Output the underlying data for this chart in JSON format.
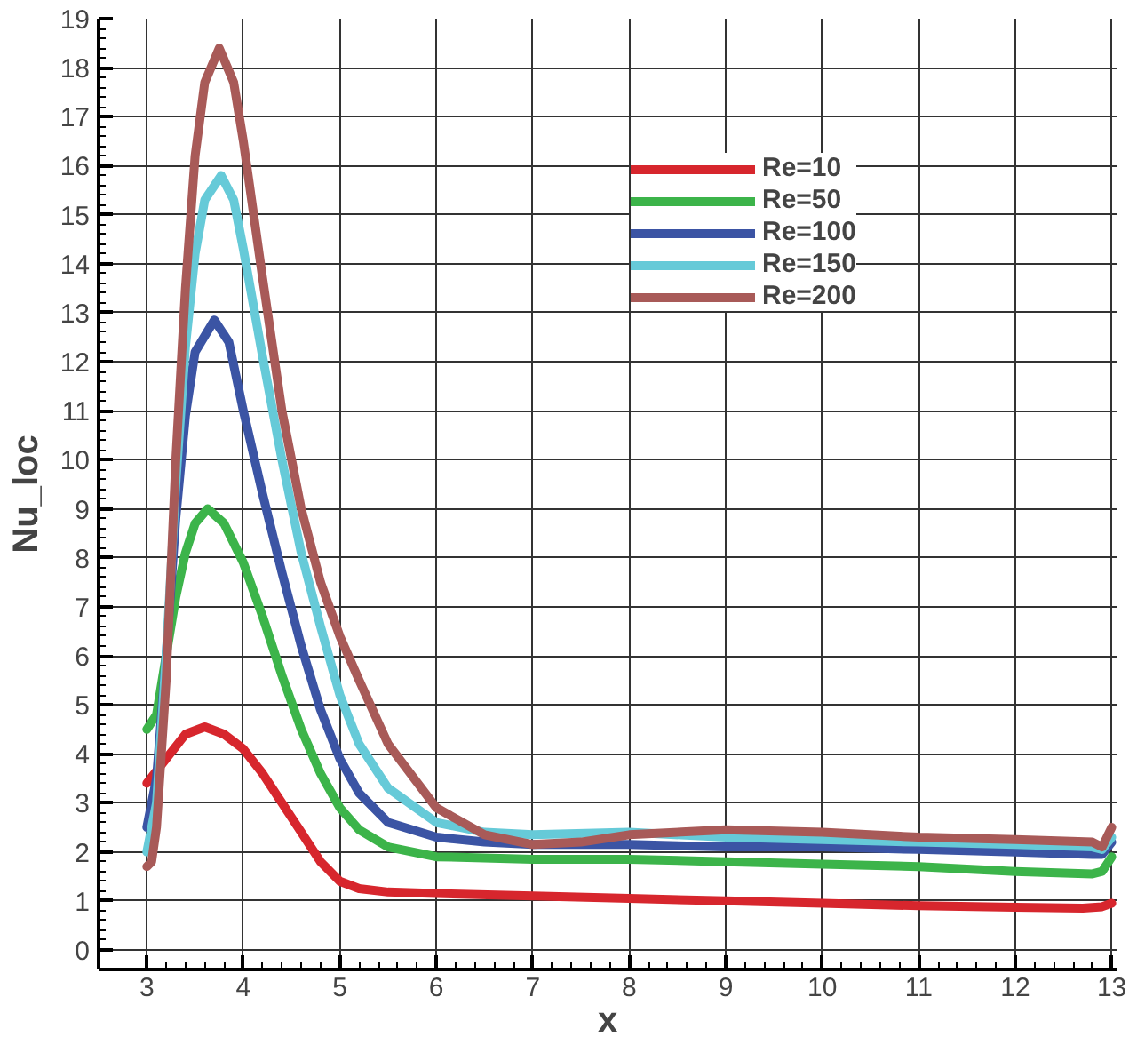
{
  "chart_data": {
    "type": "line",
    "xlabel": "x",
    "ylabel": "Nu_loc",
    "xlim": [
      2.5,
      13.05
    ],
    "ylim": [
      -0.4,
      19
    ],
    "xticks": [
      3,
      4,
      5,
      6,
      7,
      8,
      9,
      10,
      11,
      12,
      13
    ],
    "yticks": [
      0,
      1,
      2,
      3,
      4,
      5,
      6,
      7,
      8,
      9,
      10,
      11,
      12,
      13,
      14,
      15,
      16,
      17,
      18,
      19
    ],
    "grid": true,
    "legend": "top right",
    "line_style": "solid",
    "marker": "none",
    "series": [
      {
        "name": "Re=10",
        "color": "#d7262d",
        "x": [
          3,
          3.2,
          3.4,
          3.6,
          3.8,
          4.0,
          4.2,
          4.4,
          4.6,
          4.8,
          5.0,
          5.2,
          5.5,
          6,
          7,
          8,
          9,
          10,
          11,
          12,
          12.7,
          12.9,
          13
        ],
        "values": [
          3.4,
          3.9,
          4.4,
          4.55,
          4.4,
          4.1,
          3.6,
          3.0,
          2.4,
          1.8,
          1.4,
          1.25,
          1.18,
          1.15,
          1.1,
          1.05,
          1.0,
          0.95,
          0.9,
          0.87,
          0.85,
          0.88,
          0.95
        ]
      },
      {
        "name": "Re=50",
        "color": "#3cb44a",
        "x": [
          3,
          3.1,
          3.2,
          3.3,
          3.4,
          3.5,
          3.63,
          3.8,
          4.0,
          4.2,
          4.4,
          4.6,
          4.8,
          5.0,
          5.2,
          5.5,
          6,
          7,
          8,
          9,
          10,
          11,
          12,
          12.8,
          12.9,
          13
        ],
        "values": [
          4.5,
          4.8,
          6.0,
          7.2,
          8.1,
          8.7,
          9.0,
          8.7,
          7.9,
          6.8,
          5.6,
          4.5,
          3.6,
          2.9,
          2.45,
          2.1,
          1.9,
          1.85,
          1.85,
          1.8,
          1.75,
          1.7,
          1.6,
          1.55,
          1.6,
          1.9
        ]
      },
      {
        "name": "Re=100",
        "color": "#3b54a4",
        "x": [
          3,
          3.1,
          3.2,
          3.3,
          3.4,
          3.5,
          3.7,
          3.85,
          4.0,
          4.2,
          4.4,
          4.6,
          4.8,
          5.0,
          5.2,
          5.5,
          6,
          6.5,
          7,
          8,
          9,
          10,
          11,
          12,
          12.8,
          12.9,
          13
        ],
        "values": [
          2.5,
          3.5,
          6.0,
          8.8,
          10.9,
          12.2,
          12.85,
          12.4,
          11.0,
          9.3,
          7.7,
          6.2,
          4.9,
          3.9,
          3.2,
          2.6,
          2.3,
          2.2,
          2.15,
          2.15,
          2.1,
          2.1,
          2.05,
          2.0,
          1.95,
          1.95,
          2.2
        ]
      },
      {
        "name": "Re=150",
        "color": "#66cad8",
        "x": [
          3,
          3.1,
          3.2,
          3.3,
          3.4,
          3.5,
          3.6,
          3.77,
          3.9,
          4.0,
          4.2,
          4.4,
          4.6,
          4.8,
          5.0,
          5.2,
          5.5,
          6,
          6.5,
          7,
          8,
          9,
          10,
          11,
          12,
          12.8,
          12.9,
          13
        ],
        "values": [
          2.0,
          3.0,
          6.0,
          9.5,
          12.3,
          14.2,
          15.3,
          15.8,
          15.3,
          14.3,
          12.1,
          10.0,
          8.1,
          6.6,
          5.2,
          4.2,
          3.3,
          2.6,
          2.4,
          2.35,
          2.4,
          2.3,
          2.25,
          2.2,
          2.15,
          2.1,
          2.05,
          2.3
        ]
      },
      {
        "name": "Re=200",
        "color": "#a85a58",
        "x": [
          3,
          3.05,
          3.1,
          3.2,
          3.3,
          3.4,
          3.5,
          3.6,
          3.75,
          3.9,
          4.0,
          4.2,
          4.4,
          4.6,
          4.8,
          5.0,
          5.2,
          5.5,
          6,
          6.5,
          7,
          7.5,
          8,
          9,
          10,
          11,
          12,
          12.8,
          12.9,
          13
        ],
        "values": [
          1.7,
          1.8,
          2.5,
          5.5,
          10.0,
          13.5,
          16.2,
          17.7,
          18.4,
          17.7,
          16.5,
          13.7,
          11.0,
          9.0,
          7.5,
          6.4,
          5.5,
          4.2,
          2.9,
          2.35,
          2.15,
          2.2,
          2.35,
          2.45,
          2.4,
          2.3,
          2.25,
          2.2,
          2.1,
          2.5
        ]
      }
    ]
  }
}
